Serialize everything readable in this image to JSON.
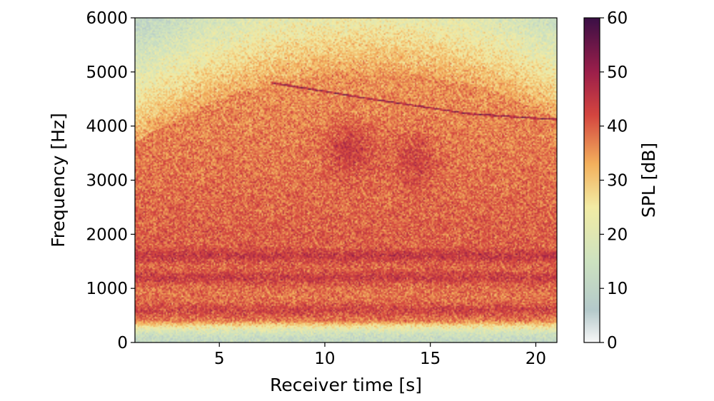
{
  "chart_data": {
    "type": "heatmap",
    "xlabel": "Receiver time [s]",
    "ylabel": "Frequency [Hz]",
    "colorbar_label": "SPL [dB]",
    "xlim": [
      1,
      21
    ],
    "ylim": [
      0,
      6000
    ],
    "clim": [
      0,
      60
    ],
    "x_ticks": [
      5,
      10,
      15,
      20
    ],
    "y_ticks": [
      0,
      1000,
      2000,
      3000,
      4000,
      5000,
      6000
    ],
    "colorbar_ticks": [
      0,
      10,
      20,
      30,
      40,
      50,
      60
    ],
    "colormap": "Spectral_r-like",
    "colormap_stops": [
      {
        "v": 0,
        "color": "#f7f7f7"
      },
      {
        "v": 6,
        "color": "#b4c9ca"
      },
      {
        "v": 15,
        "color": "#cde2c0"
      },
      {
        "v": 25,
        "color": "#f2eba4"
      },
      {
        "v": 33,
        "color": "#f3b05c"
      },
      {
        "v": 42,
        "color": "#d4453f"
      },
      {
        "v": 50,
        "color": "#9b1f4a"
      },
      {
        "v": 60,
        "color": "#3a0f45"
      }
    ],
    "features": [
      {
        "kind": "tonal-line",
        "points": [
          [
            7.5,
            4800
          ],
          [
            12.2,
            4500
          ],
          [
            16.8,
            4230
          ],
          [
            21,
            4120
          ]
        ],
        "level_db": 52
      },
      {
        "kind": "harmonic-bands",
        "freqs_hz": [
          600,
          1200,
          1600
        ],
        "level_db": 44
      },
      {
        "kind": "broadband-hump",
        "center_s": 12,
        "top_hz_at_center": 5000,
        "level_db": 40
      },
      {
        "kind": "low-freq-floor",
        "range_hz": [
          0,
          400
        ],
        "level_db": 12
      }
    ]
  }
}
